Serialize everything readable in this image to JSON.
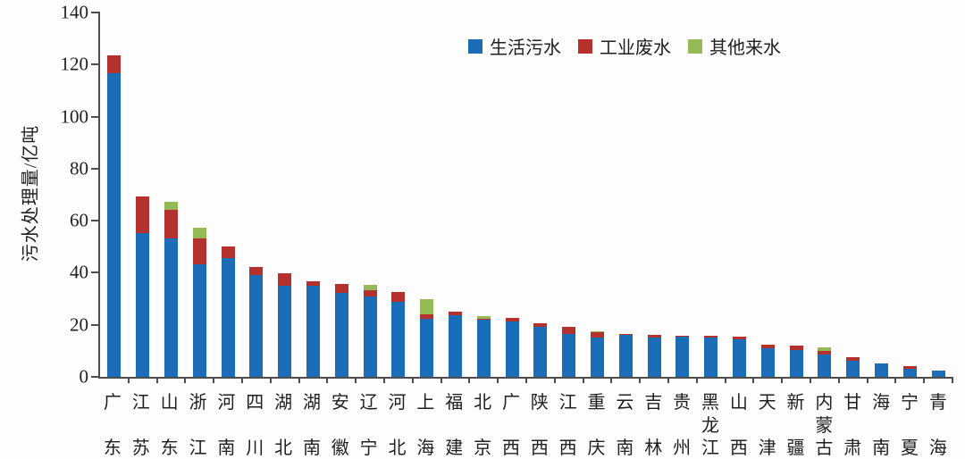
{
  "chart_data": {
    "type": "bar",
    "stacked": true,
    "ylabel": "污水处理量/亿吨",
    "ylim": [
      0,
      140
    ],
    "yticks": [
      0,
      20,
      40,
      60,
      80,
      100,
      120,
      140
    ],
    "grid": false,
    "legend_position": "top-center",
    "categories": [
      "广东",
      "江苏",
      "山东",
      "浙江",
      "河南",
      "四川",
      "湖北",
      "湖南",
      "安徽",
      "辽宁",
      "河北",
      "上海",
      "福建",
      "北京",
      "广西",
      "陕西",
      "江西",
      "重庆",
      "云南",
      "吉林",
      "贵州",
      "黑龙江",
      "山西",
      "天津",
      "新疆",
      "内蒙古",
      "甘肃",
      "海南",
      "宁夏",
      "青海"
    ],
    "series": [
      {
        "name": "生活污水",
        "color": "#1b6db8",
        "values": [
          116,
          55,
          53,
          43,
          45.5,
          39,
          35,
          34.8,
          32,
          30.8,
          28.8,
          22.2,
          23.5,
          22,
          21.2,
          19,
          16.4,
          15,
          16,
          15,
          15.5,
          15.1,
          14.5,
          11,
          10.4,
          8.4,
          6.3,
          5.2,
          3.2,
          2.5
        ]
      },
      {
        "name": "工业废水",
        "color": "#b5312e",
        "values": [
          7,
          14,
          11,
          10,
          4.5,
          3,
          4.5,
          1.7,
          3.5,
          2.5,
          3.5,
          1.8,
          1.5,
          0.3,
          1.5,
          1.5,
          2.8,
          2,
          0.4,
          1.2,
          0.3,
          0.5,
          0.8,
          1.4,
          1.4,
          1.5,
          1.3,
          0,
          1,
          0
        ]
      },
      {
        "name": "其他来水",
        "color": "#94ba55",
        "values": [
          0,
          0,
          3,
          4,
          0,
          0,
          0,
          0,
          0,
          2,
          0,
          5.8,
          0,
          1,
          0,
          0,
          0,
          0.5,
          0,
          0,
          0,
          0,
          0,
          0,
          0,
          1.4,
          0,
          0,
          0,
          0
        ]
      }
    ],
    "axis_color": "#4d4d4d"
  }
}
